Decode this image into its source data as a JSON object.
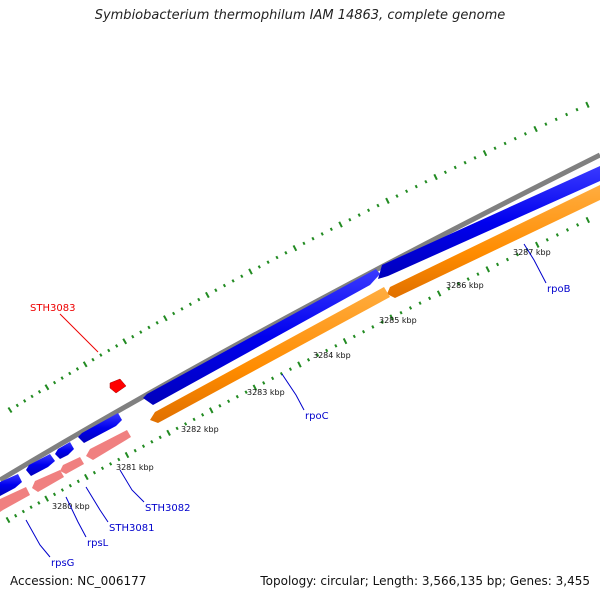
{
  "title": "Symbiobacterium thermophilum IAM 14863, complete genome",
  "footer": {
    "accession": "Accession: NC_006177",
    "summary": "Topology: circular; Length: 3,566,135 bp; Genes: 3,455"
  },
  "colors": {
    "backbone": "#808080",
    "forward_gene": "#0000ff",
    "reverse_cds": "#ff8c00",
    "reverse_rna": "#f08080",
    "minor_tick": "#228b22",
    "label_blue": "#0000cc",
    "label_red": "#ee0000",
    "highlight": "#ff0000"
  },
  "tick_labels": [
    "3280 kbp",
    "3281 kbp",
    "3282 kbp",
    "3283 kbp",
    "3284 kbp",
    "3285 kbp",
    "3286 kbp",
    "3287 kbp"
  ],
  "gene_labels": {
    "sth3083": "STH3083",
    "rpob": "rpoB",
    "rpoc": "rpoC",
    "sth3082": "STH3082",
    "sth3081": "STH3081",
    "rpsl": "rpsL",
    "rpsg": "rpsG"
  }
}
